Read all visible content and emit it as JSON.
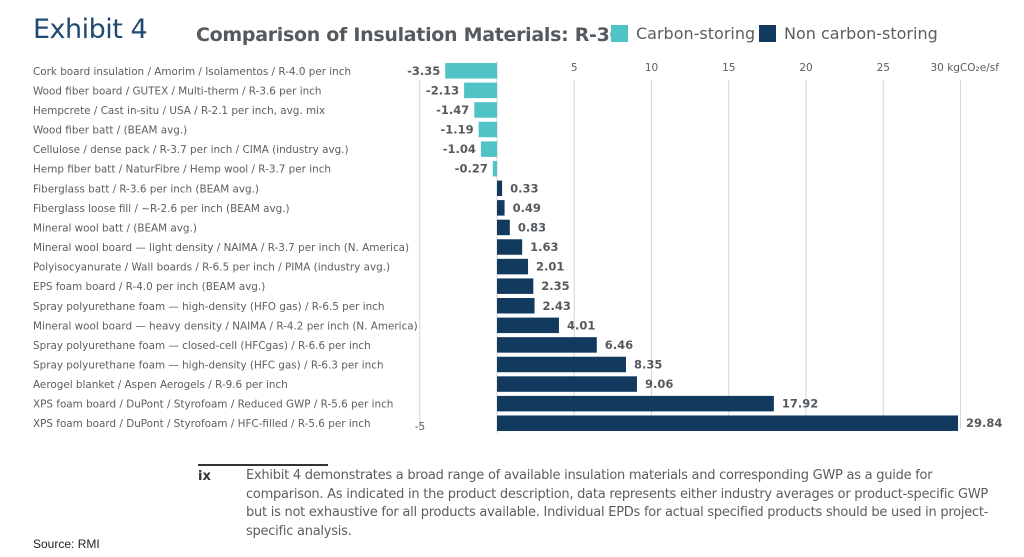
{
  "header": {
    "exhibit_label": "Exhibit 4",
    "title": "Comparison of Insulation Materials: R-30"
  },
  "legend": [
    {
      "label": "Carbon-storing",
      "color": "#4fc3c6"
    },
    {
      "label": "Non carbon-storing",
      "color": "#123a5f"
    }
  ],
  "chart_data": {
    "type": "bar",
    "orientation": "horizontal",
    "title": "Comparison of Insulation Materials: R-30",
    "xlabel": "kgCO2e/sf",
    "ylabel": "",
    "xlim": [
      -5,
      30
    ],
    "xticks": [
      {
        "value": -5,
        "label": "-5"
      },
      {
        "value": 5,
        "label": "5"
      },
      {
        "value": 10,
        "label": "10"
      },
      {
        "value": 15,
        "label": "15"
      },
      {
        "value": 20,
        "label": "20"
      },
      {
        "value": 25,
        "label": "25"
      },
      {
        "value": 30,
        "label": "30 kgCO₂e/sf"
      }
    ],
    "grid": true,
    "legend_position": "top",
    "categories": [
      "Cork board insulation / Amorim / Isolamentos / R-4.0 per inch",
      "Wood fiber board / GUTEX / Multi-therm / R-3.6 per inch",
      "Hempcrete / Cast in-situ / USA / R-2.1 per inch, avg. mix",
      "Wood fiber batt / (BEAM avg.)",
      "Cellulose / dense pack / R-3.7 per inch / CIMA (industry avg.)",
      "Hemp fiber batt / NaturFibre / Hemp wool / R-3.7 per inch",
      "Fiberglass batt / R-3.6 per inch (BEAM avg.)",
      "Fiberglass loose fill / ~R-2.6 per inch (BEAM avg.)",
      "Mineral wool batt / (BEAM avg.)",
      "Mineral wool board — light density / NAIMA / R-3.7 per inch (N. America)",
      "Polyisocyanurate / Wall boards / R-6.5 per inch / PIMA (industry avg.)",
      "EPS foam board / R-4.0 per inch (BEAM avg.)",
      "Spray polyurethane foam — high-density (HFO gas) / R-6.5 per inch",
      "Mineral wool board — heavy density / NAIMA / R-4.2 per inch (N. America)",
      "Spray polyurethane foam — closed-cell (HFCgas) / R-6.6 per inch",
      "Spray polyurethane foam — high-density (HFC gas) / R-6.3 per inch",
      "Aerogel blanket / Aspen Aerogels / R-9.6 per inch",
      "XPS foam board / DuPont / Styrofoam / Reduced GWP / R-5.6 per inch",
      "XPS foam board / DuPont / Styrofoam / HFC-filled / R-5.6 per inch"
    ],
    "values": [
      -3.35,
      -2.13,
      -1.47,
      -1.19,
      -1.04,
      -0.27,
      0.33,
      0.49,
      0.83,
      1.63,
      2.01,
      2.35,
      2.43,
      4.01,
      6.46,
      8.35,
      9.06,
      17.92,
      29.84
    ],
    "value_labels": [
      "-3.35",
      "-2.13",
      "-1.47",
      "-1.19",
      "-1.04",
      "-0.27",
      "0.33",
      "0.49",
      "0.83",
      "1.63",
      "2.01",
      "2.35",
      "2.43",
      "4.01",
      "6.46",
      "8.35",
      "9.06",
      "17.92",
      "29.84"
    ],
    "groups": [
      "Carbon-storing",
      "Carbon-storing",
      "Carbon-storing",
      "Carbon-storing",
      "Carbon-storing",
      "Carbon-storing",
      "Non carbon-storing",
      "Non carbon-storing",
      "Non carbon-storing",
      "Non carbon-storing",
      "Non carbon-storing",
      "Non carbon-storing",
      "Non carbon-storing",
      "Non carbon-storing",
      "Non carbon-storing",
      "Non carbon-storing",
      "Non carbon-storing",
      "Non carbon-storing",
      "Non carbon-storing"
    ],
    "series": [
      {
        "name": "Carbon-storing",
        "color": "#4fc3c6"
      },
      {
        "name": "Non carbon-storing",
        "color": "#123a5f"
      }
    ]
  },
  "footnote": {
    "marker": "ix",
    "text": "Exhibit 4 demonstrates a broad range of available insulation materials and corresponding GWP as a guide for comparison. As indicated in the product description, data represents either industry averages or product-specific GWP but is not exhaustive for all products available. Individual EPDs for actual specified products should be used in project-specific analysis."
  },
  "source": "Source: RMI"
}
